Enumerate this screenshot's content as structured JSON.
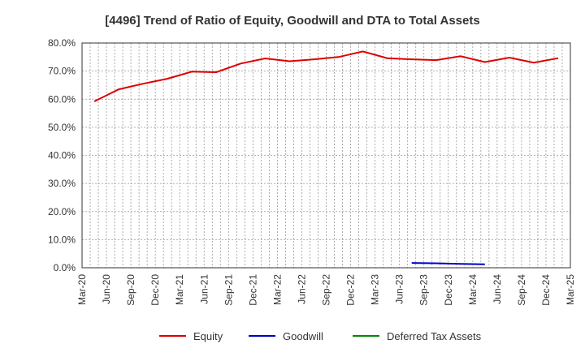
{
  "chart_data": {
    "type": "line",
    "title": "[4496]  Trend of Ratio of Equity, Goodwill and DTA to Total Assets",
    "xlabel": "",
    "ylabel": "",
    "ylim": [
      0,
      80
    ],
    "y_ticks": [
      "0.0%",
      "10.0%",
      "20.0%",
      "30.0%",
      "40.0%",
      "50.0%",
      "60.0%",
      "70.0%",
      "80.0%"
    ],
    "x_ticks": [
      "Mar-20",
      "Jun-20",
      "Sep-20",
      "Dec-20",
      "Mar-21",
      "Jun-21",
      "Sep-21",
      "Dec-21",
      "Mar-22",
      "Jun-22",
      "Sep-22",
      "Dec-22",
      "Mar-23",
      "Jun-23",
      "Sep-23",
      "Dec-23",
      "Mar-24",
      "Jun-24",
      "Sep-24",
      "Dec-24",
      "Mar-25"
    ],
    "grid": true,
    "legend_position": "bottom",
    "series": [
      {
        "name": "Equity",
        "color": "#dd0000",
        "values": [
          null,
          59.2,
          63.5,
          65.5,
          67.3,
          69.8,
          69.6,
          72.7,
          74.5,
          73.5,
          74.2,
          75.0,
          77.0,
          74.6,
          74.2,
          73.9,
          75.3,
          73.2,
          74.8,
          73.0,
          74.6
        ]
      },
      {
        "name": "Goodwill",
        "color": "#0000cc",
        "values": [
          null,
          null,
          null,
          null,
          null,
          null,
          null,
          null,
          null,
          null,
          null,
          null,
          null,
          null,
          1.7,
          1.6,
          1.4,
          1.2,
          null,
          null,
          null
        ]
      },
      {
        "name": "Deferred Tax Assets",
        "color": "#008800",
        "values": [
          null,
          null,
          null,
          null,
          null,
          null,
          null,
          null,
          null,
          null,
          null,
          null,
          null,
          null,
          null,
          null,
          null,
          null,
          null,
          null,
          null
        ]
      }
    ],
    "x_index_of_values": "values[i] is plotted at x position i - 0.5 relative to tick index (quarter after Mar-20 shifted by one)"
  }
}
